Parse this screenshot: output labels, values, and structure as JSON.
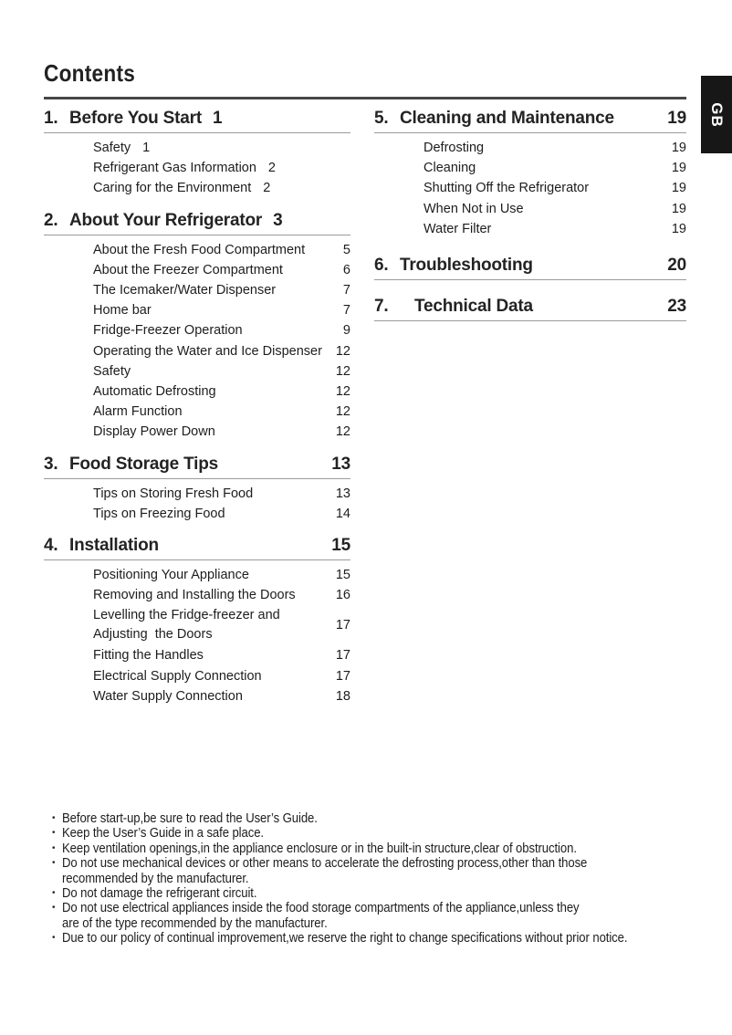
{
  "page": {
    "title": "Contents",
    "language_tab": "GB"
  },
  "toc": {
    "left": [
      {
        "num": "1.",
        "title": "Before You Start",
        "page": "1",
        "inline_page": true,
        "items": [
          {
            "label": "Safety",
            "page": "1",
            "inline_page": true
          },
          {
            "label": "Refrigerant Gas Information",
            "page": "2",
            "inline_page": true
          },
          {
            "label": "Caring for the Environment",
            "page": "2",
            "inline_page": true
          }
        ]
      },
      {
        "num": "2.",
        "title": "About Your Refrigerator",
        "page": "3",
        "inline_page": true,
        "items": [
          {
            "label": "About the Fresh Food Compartment",
            "page": "5"
          },
          {
            "label": "About the Freezer Compartment",
            "page": "6"
          },
          {
            "label": "The Icemaker/Water Dispenser",
            "page": "7"
          },
          {
            "label": "Home bar",
            "page": "7"
          },
          {
            "label": "Fridge-Freezer Operation",
            "page": "9"
          },
          {
            "label": "Operating the Water and Ice Dispenser",
            "page": "12"
          },
          {
            "label": "Safety",
            "page": "12"
          },
          {
            "label": "Automatic Defrosting",
            "page": "12"
          },
          {
            "label": "Alarm Function",
            "page": "12"
          },
          {
            "label": "Display Power Down",
            "page": "12"
          }
        ]
      },
      {
        "num": "3.",
        "title": "Food Storage Tips",
        "page": "13",
        "items": [
          {
            "label": "Tips on Storing Fresh Food",
            "page": "13"
          },
          {
            "label": "Tips on Freezing Food",
            "page": "14"
          }
        ]
      },
      {
        "num": "4.",
        "title": "Installation",
        "page": "15",
        "items": [
          {
            "label": "Positioning Your Appliance",
            "page": "15"
          },
          {
            "label": "Removing and Installing the Doors",
            "page": "16"
          },
          {
            "label": "Levelling the Fridge-freezer and\nAdjusting  the Doors",
            "page": "17",
            "two_line": true
          },
          {
            "label": "Fitting the Handles",
            "page": "17"
          },
          {
            "label": "Electrical Supply Connection",
            "page": "17"
          },
          {
            "label": "Water Supply Connection",
            "page": "18"
          }
        ]
      }
    ],
    "right": [
      {
        "num": "5.",
        "title": "Cleaning and Maintenance",
        "page": "19",
        "items": [
          {
            "label": "Defrosting",
            "page": "19"
          },
          {
            "label": "Cleaning",
            "page": "19"
          },
          {
            "label": "Shutting Off the Refrigerator",
            "page": "19"
          },
          {
            "label": "When Not in Use",
            "page": "19"
          },
          {
            "label": "Water Filter",
            "page": "19"
          }
        ]
      },
      {
        "num": "6.",
        "title": "Troubleshooting",
        "page": "20",
        "items": []
      },
      {
        "num": "7.",
        "title": "Technical Data",
        "page": "23",
        "wide_num": true,
        "items": []
      }
    ]
  },
  "notes": [
    "Before start-up,be sure to read the User’s Guide.",
    "Keep the User’s Guide in a safe place.",
    "Keep ventilation openings,in the appliance enclosure or in the built-in structure,clear of obstruction.",
    "Do not use mechanical devices or other means to accelerate the defrosting process,other than those\nrecommended by the manufacturer.",
    "Do not damage the refrigerant circuit.",
    "Do not use electrical appliances inside the food storage compartments of the appliance,unless they\nare of the type recommended by the manufacturer.",
    "Due to our policy of continual improvement,we reserve the right to change specifications without prior notice."
  ]
}
